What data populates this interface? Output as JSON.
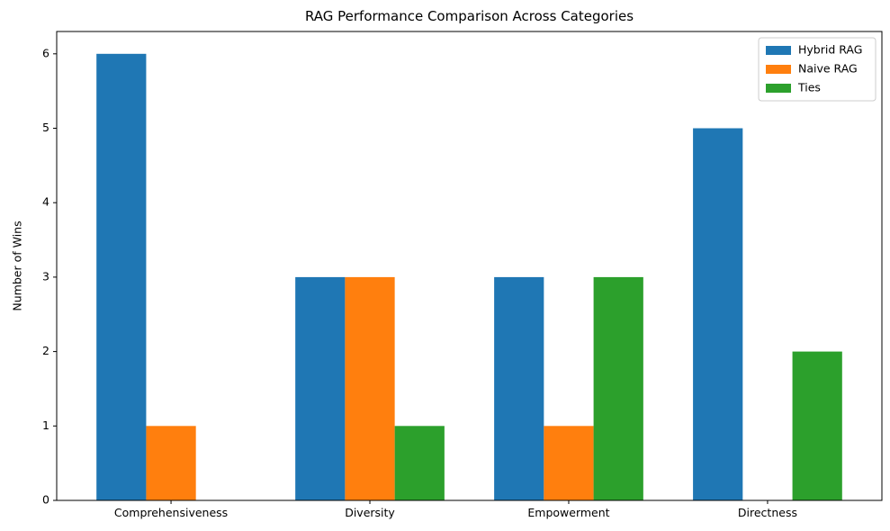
{
  "chart_data": {
    "type": "bar",
    "title": "RAG Performance Comparison Across Categories",
    "xlabel": "",
    "ylabel": "Number of Wins",
    "categories": [
      "Comprehensiveness",
      "Diversity",
      "Empowerment",
      "Directness"
    ],
    "series": [
      {
        "name": "Hybrid RAG",
        "color": "#1f77b4",
        "values": [
          6,
          3,
          3,
          5
        ]
      },
      {
        "name": "Naive RAG",
        "color": "#ff7f0e",
        "values": [
          1,
          3,
          1,
          0
        ]
      },
      {
        "name": "Ties",
        "color": "#2ca02c",
        "values": [
          0,
          1,
          3,
          2
        ]
      }
    ],
    "ylim": [
      0,
      6.3
    ],
    "yticks": [
      0,
      1,
      2,
      3,
      4,
      5,
      6
    ],
    "grid": false,
    "legend_position": "top-right"
  }
}
